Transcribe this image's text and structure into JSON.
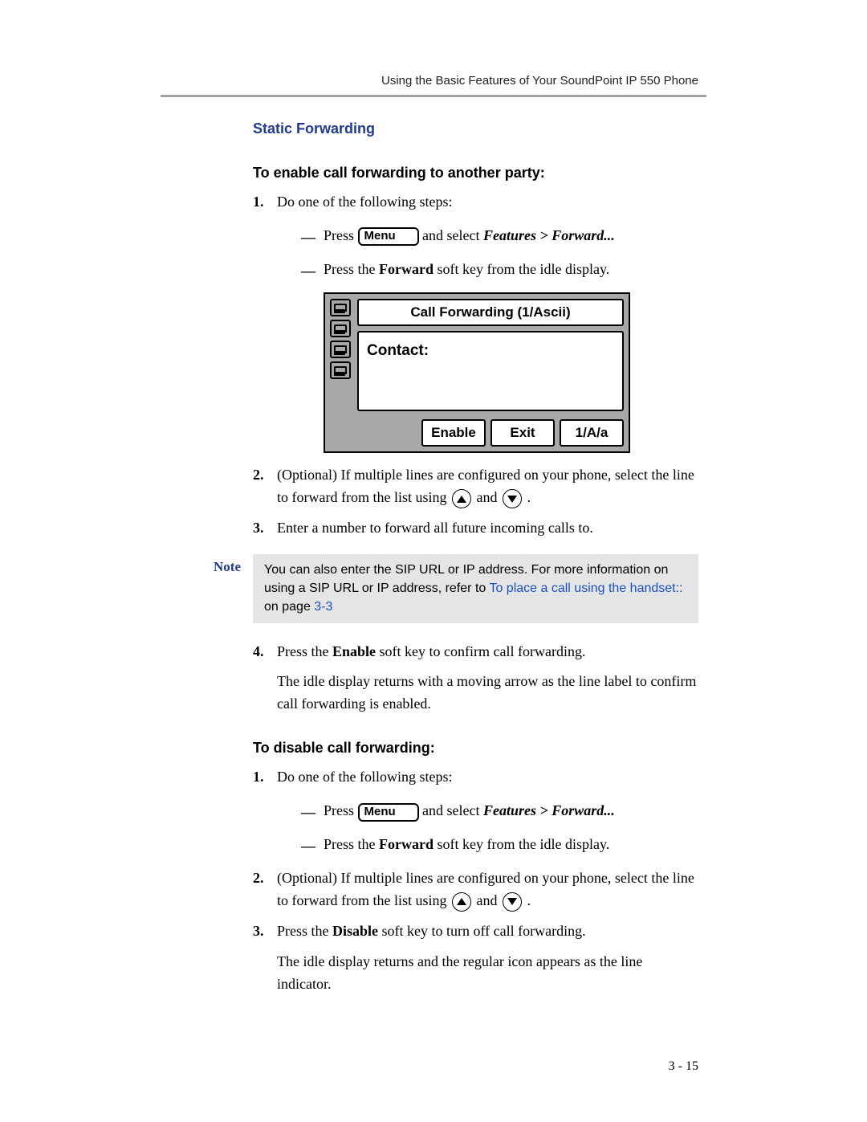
{
  "header": {
    "running": "Using the Basic Features of Your SoundPoint IP 550 Phone"
  },
  "section_title": "Static Forwarding",
  "enable": {
    "title": "To enable call forwarding to another party:",
    "step1": "Do one of the following steps:",
    "sub1_pre": "Press ",
    "menu_label": "Menu",
    "sub1_post": " and select ",
    "sub1_path": "Features > Forward...",
    "sub2_a": "Press the ",
    "sub2_b": "Forward",
    "sub2_c": " soft key from the idle display.",
    "step2_a": "(Optional) If multiple lines are configured on your phone, select the line to forward from the list using ",
    "step2_b": " and ",
    "step2_c": ".",
    "step3": "Enter a number to forward all future incoming calls to.",
    "step4_a": "Press the ",
    "step4_b": "Enable",
    "step4_c": " soft key to confirm call forwarding.",
    "step4_para": "The idle display returns with a moving arrow as the line label to confirm call forwarding is enabled."
  },
  "note": {
    "label": "Note",
    "text_a": "You can also enter the SIP URL or IP address. For more information on using a SIP URL or IP address, refer to ",
    "link": "To place a call using the handset::",
    "text_b": " on page ",
    "page_ref": "3-3"
  },
  "disable": {
    "title": "To disable call forwarding:",
    "step1": "Do one of the following steps:",
    "sub1_pre": "Press ",
    "menu_label": "Menu",
    "sub1_post": " and select ",
    "sub1_path": "Features > Forward...",
    "sub2_a": "Press the ",
    "sub2_b": "Forward",
    "sub2_c": " soft key from the idle display.",
    "step2_a": "(Optional) If multiple lines are configured on your phone, select the line to forward from the list using ",
    "step2_b": " and ",
    "step2_c": ".",
    "step3_a": "Press the ",
    "step3_b": "Disable",
    "step3_c": " soft key to turn off call forwarding.",
    "step3_para": "The idle display returns and the regular icon appears as the line indicator."
  },
  "lcd": {
    "title": "Call Forwarding (1/Ascii)",
    "field_label": "Contact:",
    "softkeys": [
      "Enable",
      "Exit",
      "1/A/a"
    ]
  },
  "page_number": "3 - 15",
  "style": {
    "heading_color": "#223a8f",
    "link_color": "#1a4fc4",
    "rule_color": "#a0a0a0",
    "note_bg": "#e5e5e5",
    "lcd_bg": "#a8a8a8",
    "body_font_size_pt": 13,
    "heading_font_size_pt": 13
  }
}
